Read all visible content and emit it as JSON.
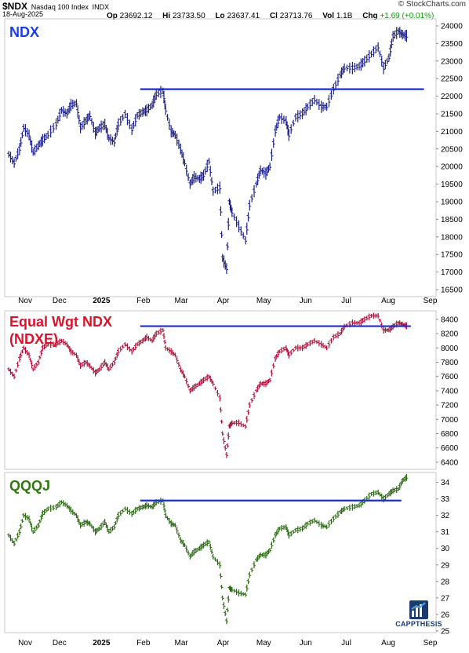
{
  "header": {
    "symbol": "$NDX",
    "name": "Nasdaq 100 Index",
    "exchange": "INDX",
    "date": "18-Aug-2025",
    "site": "© StockCharts.com",
    "quote": {
      "open_label": "Op",
      "open": "23692.12",
      "high_label": "Hi",
      "high": "23733.50",
      "low_label": "Lo",
      "low": "23637.41",
      "close_label": "Cl",
      "close": "23713.76",
      "vol_label": "Vol",
      "vol": "1.1B",
      "chg_label": "Chg",
      "chg": "+1.69 (+0.01%)"
    }
  },
  "x_axis_labels": [
    "Nov",
    "Dec",
    "2025",
    "Feb",
    "Mar",
    "Apr",
    "May",
    "Jun",
    "Jul",
    "Aug",
    "Sep"
  ],
  "brand": {
    "name": "CAPPTHESIS"
  },
  "colors": {
    "ndx": "#1b1f8c",
    "ndxe": "#b0103a",
    "qqqj": "#2b6a12",
    "line": "#1b2bd6",
    "ndx_title": "#1c3cf0",
    "ndxe_title": "#e0102a",
    "qqqj_title": "#2f7a0f"
  },
  "chart_data": [
    {
      "type": "bar",
      "title": "NDX",
      "y_ticks": [
        "24000",
        "23500",
        "23000",
        "22500",
        "22000",
        "21500",
        "21000",
        "20500",
        "20000",
        "19500",
        "19000",
        "18500",
        "18000",
        "17500",
        "17000",
        "16500"
      ],
      "ylim": [
        16300,
        24200
      ],
      "horizontal_line": {
        "value": 22200,
        "from": "Feb",
        "to": "Sep"
      },
      "points": [
        [
          "Oct 28",
          20350
        ],
        [
          "Nov 1",
          20100
        ],
        [
          "Nov 5",
          20500
        ],
        [
          "Nov 8",
          21100
        ],
        [
          "Nov 12",
          20900
        ],
        [
          "Nov 15",
          20400
        ],
        [
          "Nov 19",
          20600
        ],
        [
          "Nov 22",
          20750
        ],
        [
          "Nov 26",
          20900
        ],
        [
          "Dec 2",
          21200
        ],
        [
          "Dec 6",
          21600
        ],
        [
          "Dec 10",
          21500
        ],
        [
          "Dec 13",
          21750
        ],
        [
          "Dec 17",
          21800
        ],
        [
          "Dec 20",
          21100
        ],
        [
          "Dec 24",
          21300
        ],
        [
          "Dec 27",
          21450
        ],
        [
          "Dec 31",
          20950
        ],
        [
          "Jan 3",
          21100
        ],
        [
          "Jan 7",
          21200
        ],
        [
          "Jan 10",
          20800
        ],
        [
          "Jan 14",
          20700
        ],
        [
          "Jan 17",
          21200
        ],
        [
          "Jan 22",
          21500
        ],
        [
          "Jan 27",
          21050
        ],
        [
          "Jan 31",
          21450
        ],
        [
          "Feb 4",
          21550
        ],
        [
          "Feb 7",
          21600
        ],
        [
          "Feb 11",
          21750
        ],
        [
          "Feb 14",
          22050
        ],
        [
          "Feb 19",
          22150
        ],
        [
          "Feb 21",
          21600
        ],
        [
          "Feb 25",
          21000
        ],
        [
          "Feb 28",
          20900
        ],
        [
          "Mar 4",
          20500
        ],
        [
          "Mar 7",
          20100
        ],
        [
          "Mar 11",
          19500
        ],
        [
          "Mar 14",
          19700
        ],
        [
          "Mar 18",
          19650
        ],
        [
          "Mar 21",
          19750
        ],
        [
          "Mar 25",
          20150
        ],
        [
          "Mar 28",
          19300
        ],
        [
          "Apr 2",
          19400
        ],
        [
          "Apr 4",
          17400
        ],
        [
          "Apr 7",
          17100
        ],
        [
          "Apr 9",
          19000
        ],
        [
          "Apr 11",
          18700
        ],
        [
          "Apr 16",
          18300
        ],
        [
          "Apr 21",
          17900
        ],
        [
          "Apr 24",
          18900
        ],
        [
          "Apr 29",
          19500
        ],
        [
          "May 2",
          19900
        ],
        [
          "May 6",
          19800
        ],
        [
          "May 9",
          20000
        ],
        [
          "May 13",
          21000
        ],
        [
          "May 16",
          21400
        ],
        [
          "May 21",
          21300
        ],
        [
          "May 23",
          20900
        ],
        [
          "May 28",
          21400
        ],
        [
          "Jun 2",
          21500
        ],
        [
          "Jun 6",
          21700
        ],
        [
          "Jun 11",
          21900
        ],
        [
          "Jun 16",
          21700
        ],
        [
          "Jun 20",
          21700
        ],
        [
          "Jun 25",
          22200
        ],
        [
          "Jun 30",
          22600
        ],
        [
          "Jul 3",
          22800
        ],
        [
          "Jul 9",
          22800
        ],
        [
          "Jul 14",
          22850
        ],
        [
          "Jul 18",
          23000
        ],
        [
          "Jul 23",
          23200
        ],
        [
          "Jul 28",
          23400
        ],
        [
          "Aug 1",
          22800
        ],
        [
          "Aug 5",
          23100
        ],
        [
          "Aug 8",
          23700
        ],
        [
          "Aug 12",
          23850
        ],
        [
          "Aug 15",
          23750
        ],
        [
          "Aug 18",
          23714
        ]
      ]
    },
    {
      "type": "bar",
      "title_lines": [
        "Equal Wgt NDX",
        "(NDXE)"
      ],
      "y_ticks": [
        "8400",
        "8200",
        "8000",
        "7800",
        "7600",
        "7400",
        "7200",
        "7000",
        "6800",
        "6600",
        "6400"
      ],
      "ylim": [
        6300,
        8520
      ],
      "horizontal_line": {
        "value": 8305,
        "from": "Feb",
        "to": "Aug 20"
      },
      "points": [
        [
          "Oct 28",
          7700
        ],
        [
          "Nov 1",
          7600
        ],
        [
          "Nov 5",
          7850
        ],
        [
          "Nov 8",
          8000
        ],
        [
          "Nov 12",
          7900
        ],
        [
          "Nov 15",
          7700
        ],
        [
          "Nov 19",
          7800
        ],
        [
          "Nov 22",
          8000
        ],
        [
          "Nov 26",
          8050
        ],
        [
          "Dec 2",
          8050
        ],
        [
          "Dec 6",
          8100
        ],
        [
          "Dec 10",
          8050
        ],
        [
          "Dec 13",
          7950
        ],
        [
          "Dec 17",
          7900
        ],
        [
          "Dec 20",
          7750
        ],
        [
          "Dec 24",
          7800
        ],
        [
          "Dec 27",
          7750
        ],
        [
          "Dec 31",
          7650
        ],
        [
          "Jan 3",
          7700
        ],
        [
          "Jan 7",
          7800
        ],
        [
          "Jan 10",
          7700
        ],
        [
          "Jan 14",
          7800
        ],
        [
          "Jan 17",
          7950
        ],
        [
          "Jan 22",
          8050
        ],
        [
          "Jan 27",
          7950
        ],
        [
          "Jan 31",
          8050
        ],
        [
          "Feb 4",
          8100
        ],
        [
          "Feb 7",
          8150
        ],
        [
          "Feb 11",
          8100
        ],
        [
          "Feb 14",
          8200
        ],
        [
          "Feb 19",
          8250
        ],
        [
          "Feb 21",
          8000
        ],
        [
          "Feb 25",
          7950
        ],
        [
          "Feb 28",
          7900
        ],
        [
          "Mar 4",
          7700
        ],
        [
          "Mar 7",
          7600
        ],
        [
          "Mar 11",
          7400
        ],
        [
          "Mar 14",
          7450
        ],
        [
          "Mar 18",
          7500
        ],
        [
          "Mar 21",
          7550
        ],
        [
          "Mar 25",
          7600
        ],
        [
          "Mar 28",
          7500
        ],
        [
          "Apr 2",
          7300
        ],
        [
          "Apr 4",
          6800
        ],
        [
          "Apr 7",
          6500
        ],
        [
          "Apr 9",
          6900
        ],
        [
          "Apr 11",
          6950
        ],
        [
          "Apr 16",
          6950
        ],
        [
          "Apr 21",
          6900
        ],
        [
          "Apr 24",
          7200
        ],
        [
          "Apr 29",
          7400
        ],
        [
          "May 2",
          7500
        ],
        [
          "May 6",
          7500
        ],
        [
          "May 9",
          7550
        ],
        [
          "May 13",
          7850
        ],
        [
          "May 16",
          7950
        ],
        [
          "May 21",
          8000
        ],
        [
          "May 23",
          7900
        ],
        [
          "May 28",
          8000
        ],
        [
          "Jun 2",
          8000
        ],
        [
          "Jun 6",
          8050
        ],
        [
          "Jun 11",
          8100
        ],
        [
          "Jun 16",
          8050
        ],
        [
          "Jun 20",
          8000
        ],
        [
          "Jun 25",
          8150
        ],
        [
          "Jun 30",
          8200
        ],
        [
          "Jul 3",
          8300
        ],
        [
          "Jul 9",
          8350
        ],
        [
          "Jul 14",
          8350
        ],
        [
          "Jul 18",
          8400
        ],
        [
          "Jul 23",
          8450
        ],
        [
          "Jul 28",
          8450
        ],
        [
          "Aug 1",
          8250
        ],
        [
          "Aug 5",
          8250
        ],
        [
          "Aug 8",
          8300
        ],
        [
          "Aug 12",
          8350
        ],
        [
          "Aug 15",
          8330
        ],
        [
          "Aug 18",
          8310
        ]
      ]
    },
    {
      "type": "bar",
      "title": "QQQJ",
      "y_ticks": [
        "34",
        "33",
        "32",
        "31",
        "30",
        "29",
        "28",
        "27",
        "26",
        "25"
      ],
      "ylim": [
        24.9,
        34.6
      ],
      "horizontal_line": {
        "value": 32.9,
        "from": "Feb",
        "to": "Aug 13"
      },
      "points": [
        [
          "Oct 28",
          30.8
        ],
        [
          "Nov 1",
          30.3
        ],
        [
          "Nov 5",
          31.0
        ],
        [
          "Nov 8",
          32.0
        ],
        [
          "Nov 12",
          31.8
        ],
        [
          "Nov 15",
          31.0
        ],
        [
          "Nov 19",
          31.4
        ],
        [
          "Nov 22",
          32.1
        ],
        [
          "Nov 26",
          32.4
        ],
        [
          "Dec 2",
          32.5
        ],
        [
          "Dec 6",
          32.8
        ],
        [
          "Dec 10",
          32.6
        ],
        [
          "Dec 13",
          32.3
        ],
        [
          "Dec 17",
          32.0
        ],
        [
          "Dec 20",
          31.4
        ],
        [
          "Dec 24",
          31.6
        ],
        [
          "Dec 27",
          31.5
        ],
        [
          "Dec 31",
          31.0
        ],
        [
          "Jan 3",
          31.2
        ],
        [
          "Jan 7",
          31.6
        ],
        [
          "Jan 10",
          31.0
        ],
        [
          "Jan 14",
          31.3
        ],
        [
          "Jan 17",
          32.0
        ],
        [
          "Jan 22",
          32.4
        ],
        [
          "Jan 27",
          32.1
        ],
        [
          "Jan 31",
          32.4
        ],
        [
          "Feb 4",
          32.5
        ],
        [
          "Feb 7",
          32.6
        ],
        [
          "Feb 11",
          32.5
        ],
        [
          "Feb 14",
          32.8
        ],
        [
          "Feb 19",
          32.9
        ],
        [
          "Feb 21",
          32.0
        ],
        [
          "Feb 25",
          31.5
        ],
        [
          "Feb 28",
          31.4
        ],
        [
          "Mar 4",
          30.5
        ],
        [
          "Mar 7",
          30.2
        ],
        [
          "Mar 11",
          29.5
        ],
        [
          "Mar 14",
          29.8
        ],
        [
          "Mar 18",
          30.0
        ],
        [
          "Mar 21",
          30.2
        ],
        [
          "Mar 25",
          30.4
        ],
        [
          "Mar 28",
          29.5
        ],
        [
          "Apr 2",
          29.0
        ],
        [
          "Apr 4",
          27.0
        ],
        [
          "Apr 7",
          25.6
        ],
        [
          "Apr 9",
          27.6
        ],
        [
          "Apr 11",
          27.5
        ],
        [
          "Apr 16",
          27.3
        ],
        [
          "Apr 21",
          27.2
        ],
        [
          "Apr 24",
          28.4
        ],
        [
          "Apr 29",
          29.3
        ],
        [
          "May 2",
          29.6
        ],
        [
          "May 6",
          29.6
        ],
        [
          "May 9",
          29.9
        ],
        [
          "May 13",
          30.8
        ],
        [
          "May 16",
          31.2
        ],
        [
          "May 21",
          31.3
        ],
        [
          "May 23",
          30.8
        ],
        [
          "May 28",
          31.1
        ],
        [
          "Jun 2",
          31.2
        ],
        [
          "Jun 6",
          31.5
        ],
        [
          "Jun 11",
          31.7
        ],
        [
          "Jun 16",
          31.4
        ],
        [
          "Jun 20",
          31.3
        ],
        [
          "Jun 25",
          31.8
        ],
        [
          "Jun 30",
          32.2
        ],
        [
          "Jul 3",
          32.4
        ],
        [
          "Jul 9",
          32.5
        ],
        [
          "Jul 14",
          32.6
        ],
        [
          "Jul 18",
          32.9
        ],
        [
          "Jul 23",
          33.3
        ],
        [
          "Jul 28",
          33.4
        ],
        [
          "Aug 1",
          33.0
        ],
        [
          "Aug 5",
          33.3
        ],
        [
          "Aug 8",
          33.5
        ],
        [
          "Aug 12",
          33.6
        ],
        [
          "Aug 15",
          34.1
        ],
        [
          "Aug 18",
          34.3
        ]
      ]
    }
  ]
}
